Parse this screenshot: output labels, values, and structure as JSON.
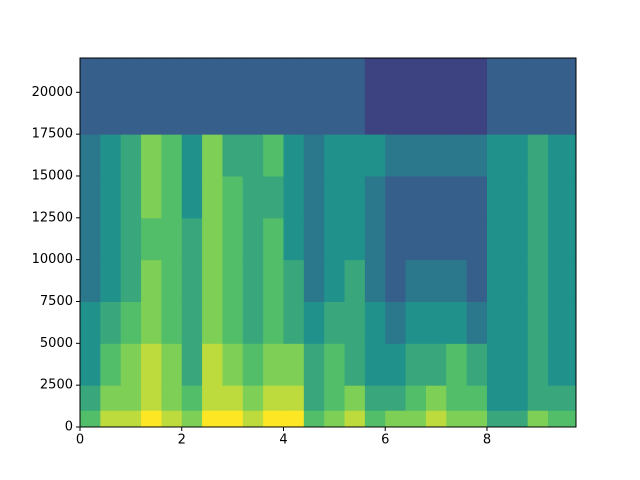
{
  "chart_data": {
    "type": "spectrogram",
    "cmap": "viridis",
    "zlim": [
      0,
      10
    ],
    "xlim": [
      0,
      9.75
    ],
    "ylim": [
      0,
      22050
    ],
    "xticks": [
      0,
      2,
      4,
      6,
      8
    ],
    "yticks": [
      0,
      2500,
      5000,
      7500,
      10000,
      12500,
      15000,
      17500,
      20000
    ],
    "time_bins": [
      0,
      0.4,
      0.8,
      1.2,
      1.6,
      2.0,
      2.4,
      2.8,
      3.2,
      3.6,
      4.0,
      4.4,
      4.8,
      5.2,
      5.6,
      6.0,
      6.4,
      6.8,
      7.2,
      7.6,
      8.0,
      8.4,
      8.8,
      9.2,
      9.75
    ],
    "freq_bins": [
      0,
      1000,
      2500,
      5000,
      7500,
      10000,
      12500,
      15000,
      17500,
      22050
    ],
    "z": [
      [
        7,
        6,
        5,
        5,
        4,
        4,
        4,
        4,
        3
      ],
      [
        9,
        8,
        7,
        6,
        5,
        5,
        5,
        5,
        3
      ],
      [
        9,
        8,
        8,
        7,
        6,
        6,
        6,
        6,
        3
      ],
      [
        10,
        9,
        9,
        8,
        8,
        7,
        8,
        8,
        3
      ],
      [
        9,
        8,
        8,
        7,
        7,
        7,
        7,
        7,
        3
      ],
      [
        8,
        7,
        6,
        6,
        6,
        6,
        5,
        5,
        3
      ],
      [
        10,
        9,
        9,
        8,
        8,
        8,
        8,
        8,
        3
      ],
      [
        10,
        9,
        8,
        7,
        7,
        7,
        7,
        6,
        3
      ],
      [
        9,
        8,
        7,
        6,
        6,
        6,
        6,
        6,
        3
      ],
      [
        10,
        9,
        8,
        7,
        7,
        7,
        6,
        7,
        3
      ],
      [
        10,
        9,
        8,
        6,
        6,
        5,
        5,
        5,
        3
      ],
      [
        7,
        6,
        6,
        5,
        4,
        4,
        4,
        4,
        3
      ],
      [
        8,
        7,
        7,
        6,
        5,
        5,
        5,
        5,
        3
      ],
      [
        9,
        8,
        6,
        6,
        6,
        5,
        5,
        5,
        3
      ],
      [
        7,
        6,
        5,
        5,
        4,
        4,
        4,
        5,
        2
      ],
      [
        8,
        6,
        5,
        4,
        3,
        3,
        3,
        4,
        2
      ],
      [
        8,
        7,
        6,
        5,
        4,
        3,
        3,
        4,
        2
      ],
      [
        9,
        8,
        6,
        5,
        4,
        3,
        3,
        4,
        2
      ],
      [
        8,
        7,
        7,
        5,
        4,
        3,
        3,
        4,
        2
      ],
      [
        8,
        7,
        6,
        4,
        3,
        3,
        3,
        4,
        2
      ],
      [
        6,
        5,
        5,
        5,
        5,
        5,
        5,
        5,
        3
      ],
      [
        6,
        5,
        5,
        5,
        5,
        5,
        5,
        5,
        3
      ],
      [
        8,
        6,
        6,
        6,
        6,
        6,
        6,
        6,
        3
      ],
      [
        7,
        6,
        5,
        5,
        5,
        5,
        5,
        5,
        3
      ]
    ]
  }
}
